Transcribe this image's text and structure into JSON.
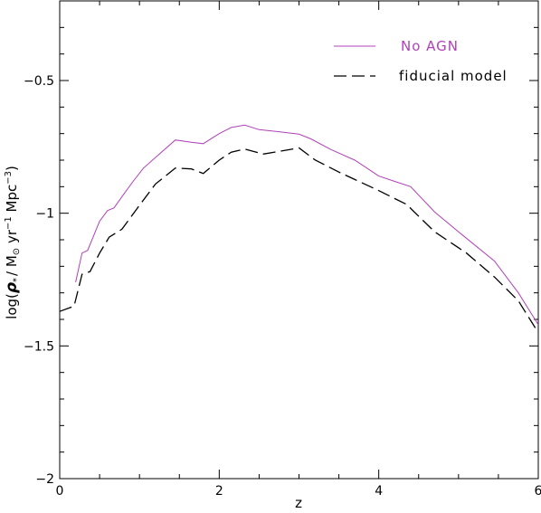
{
  "chart_data": {
    "type": "line",
    "xlabel": "z",
    "ylabel": {
      "prefix": "log(",
      "rho": "ρ",
      "sub": "*",
      "mid": "/ M",
      "sun": "⊙",
      "yr": " yr",
      "yr_exp": "−1",
      "mpc": " Mpc",
      "mpc_exp": "−3",
      "suffix": ")"
    },
    "xlim": [
      0,
      6
    ],
    "ylim": [
      -2,
      -0.2
    ],
    "x_ticks": [
      0,
      2,
      4,
      6
    ],
    "x_tick_labels": [
      "0",
      "2",
      "4",
      "6"
    ],
    "y_ticks": [
      -2,
      -1.5,
      -1,
      -0.5
    ],
    "y_tick_labels": [
      "−2",
      "−1.5",
      "−1",
      "−0.5"
    ],
    "grid": false,
    "legend_position": "top-right",
    "series": [
      {
        "name": "No AGN",
        "color": "#b040b8",
        "style": "solid",
        "x": [
          0.2,
          0.28,
          0.35,
          0.5,
          0.6,
          0.68,
          0.8,
          0.92,
          1.05,
          1.2,
          1.45,
          1.65,
          1.8,
          2.0,
          2.15,
          2.32,
          2.5,
          2.75,
          3.0,
          3.15,
          3.4,
          3.7,
          4.0,
          4.2,
          4.4,
          4.7,
          5.0,
          5.45,
          5.75,
          6.0
        ],
        "y": [
          -1.26,
          -1.15,
          -1.14,
          -1.03,
          -0.99,
          -0.98,
          -0.93,
          -0.88,
          -0.83,
          -0.79,
          -0.724,
          -0.733,
          -0.738,
          -0.7,
          -0.677,
          -0.668,
          -0.685,
          -0.693,
          -0.702,
          -0.72,
          -0.76,
          -0.8,
          -0.86,
          -0.88,
          -0.9,
          -0.995,
          -1.07,
          -1.18,
          -1.3,
          -1.42
        ]
      },
      {
        "name": "fiducial model",
        "color": "#000000",
        "style": "dashed",
        "x": [
          0.0,
          0.18,
          0.28,
          0.38,
          0.5,
          0.62,
          0.78,
          1.0,
          1.2,
          1.45,
          1.65,
          1.8,
          2.0,
          2.15,
          2.32,
          2.55,
          2.75,
          3.0,
          3.2,
          3.5,
          3.7,
          4.0,
          4.35,
          4.7,
          5.1,
          5.45,
          5.75,
          6.0
        ],
        "y": [
          -1.37,
          -1.35,
          -1.23,
          -1.22,
          -1.15,
          -1.09,
          -1.06,
          -0.97,
          -0.89,
          -0.83,
          -0.833,
          -0.85,
          -0.8,
          -0.77,
          -0.758,
          -0.777,
          -0.767,
          -0.754,
          -0.799,
          -0.845,
          -0.873,
          -0.915,
          -0.967,
          -1.07,
          -1.15,
          -1.24,
          -1.33,
          -1.45
        ]
      }
    ]
  }
}
